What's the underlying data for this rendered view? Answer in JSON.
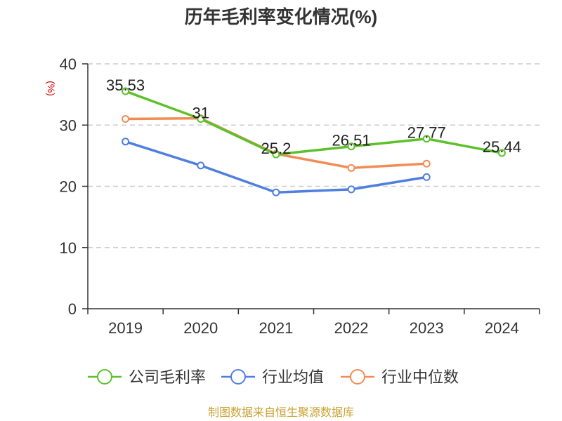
{
  "chart_data": {
    "type": "line",
    "title": "历年毛利率变化情况(%)",
    "ylabel": "(%)",
    "xlabel": "",
    "categories": [
      "2019",
      "2020",
      "2021",
      "2022",
      "2023",
      "2024"
    ],
    "ylim": [
      0,
      40
    ],
    "yticks": [
      "0",
      "10",
      "20",
      "30",
      "40"
    ],
    "grid": true,
    "legend_position": "bottom",
    "series": [
      {
        "name": "公司毛利率",
        "color": "#5cc12a",
        "values": [
          35.53,
          31,
          25.2,
          26.51,
          27.77,
          25.44
        ],
        "labels": [
          "35.53",
          "31",
          "25.2",
          "26.51",
          "27.77",
          "25.44"
        ]
      },
      {
        "name": "行业均值",
        "color": "#4f7fdf",
        "values": [
          27.3,
          23.4,
          19.0,
          19.5,
          21.5,
          null
        ]
      },
      {
        "name": "行业中位数",
        "color": "#f28c55",
        "values": [
          31.0,
          31.1,
          25.3,
          23.0,
          23.7,
          null
        ]
      }
    ]
  },
  "source": "制图数据来自恒生聚源数据库",
  "colors": {
    "ylabel": "#cc0000",
    "source": "#c8a232",
    "axis": "#333333",
    "grid": "#cccccc"
  }
}
